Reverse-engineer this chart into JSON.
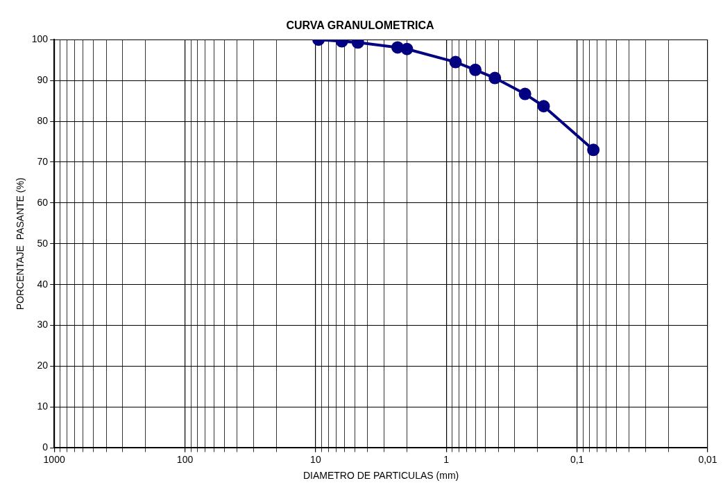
{
  "chart_data": {
    "type": "line",
    "title": "CURVA GRANULOMETRICA",
    "xlabel": "DIAMETRO DE PARTICULAS (mm)",
    "ylabel": "PORCENTAJE  PASANTE (%)",
    "log": "x",
    "grid": true,
    "legend": false,
    "marker": "circle",
    "line_style": "solid",
    "xlim": [
      1000,
      0.01
    ],
    "xticks": [
      {
        "value": 1000,
        "label": "1000"
      },
      {
        "value": 900,
        "label": null
      },
      {
        "value": 800,
        "label": null
      },
      {
        "value": 700,
        "label": null
      },
      {
        "value": 600,
        "label": null
      },
      {
        "value": 500,
        "label": null
      },
      {
        "value": 400,
        "label": null
      },
      {
        "value": 300,
        "label": null
      },
      {
        "value": 200,
        "label": null
      },
      {
        "value": 100,
        "label": "100"
      },
      {
        "value": 90,
        "label": null
      },
      {
        "value": 80,
        "label": null
      },
      {
        "value": 70,
        "label": null
      },
      {
        "value": 60,
        "label": null
      },
      {
        "value": 50,
        "label": null
      },
      {
        "value": 40,
        "label": null
      },
      {
        "value": 30,
        "label": null
      },
      {
        "value": 20,
        "label": null
      },
      {
        "value": 10,
        "label": "10"
      },
      {
        "value": 9,
        "label": null
      },
      {
        "value": 8,
        "label": null
      },
      {
        "value": 7,
        "label": null
      },
      {
        "value": 6,
        "label": null
      },
      {
        "value": 5,
        "label": null
      },
      {
        "value": 4,
        "label": null
      },
      {
        "value": 3,
        "label": null
      },
      {
        "value": 2,
        "label": null
      },
      {
        "value": 1,
        "label": "1"
      },
      {
        "value": 0.9,
        "label": null
      },
      {
        "value": 0.8,
        "label": null
      },
      {
        "value": 0.7,
        "label": null
      },
      {
        "value": 0.6,
        "label": null
      },
      {
        "value": 0.5,
        "label": null
      },
      {
        "value": 0.4,
        "label": null
      },
      {
        "value": 0.3,
        "label": null
      },
      {
        "value": 0.2,
        "label": null
      },
      {
        "value": 0.1,
        "label": "0,1"
      },
      {
        "value": 0.09,
        "label": null
      },
      {
        "value": 0.08,
        "label": null
      },
      {
        "value": 0.07,
        "label": null
      },
      {
        "value": 0.06,
        "label": null
      },
      {
        "value": 0.05,
        "label": null
      },
      {
        "value": 0.04,
        "label": null
      },
      {
        "value": 0.03,
        "label": null
      },
      {
        "value": 0.02,
        "label": null
      },
      {
        "value": 0.01,
        "label": "0,01"
      }
    ],
    "ylim": [
      0,
      100
    ],
    "yticks": [
      0,
      10,
      20,
      30,
      40,
      50,
      60,
      70,
      80,
      90,
      100
    ],
    "x": [
      9.5,
      6.3,
      4.75,
      2.36,
      2,
      0.85,
      0.6,
      0.425,
      0.25,
      0.18,
      0.075
    ],
    "series": [
      {
        "color": "#000080",
        "values": [
          100,
          99.6,
          99.3,
          98.1,
          97.7,
          94.5,
          92.6,
          90.6,
          86.7,
          83.7,
          73.0
        ]
      }
    ]
  }
}
